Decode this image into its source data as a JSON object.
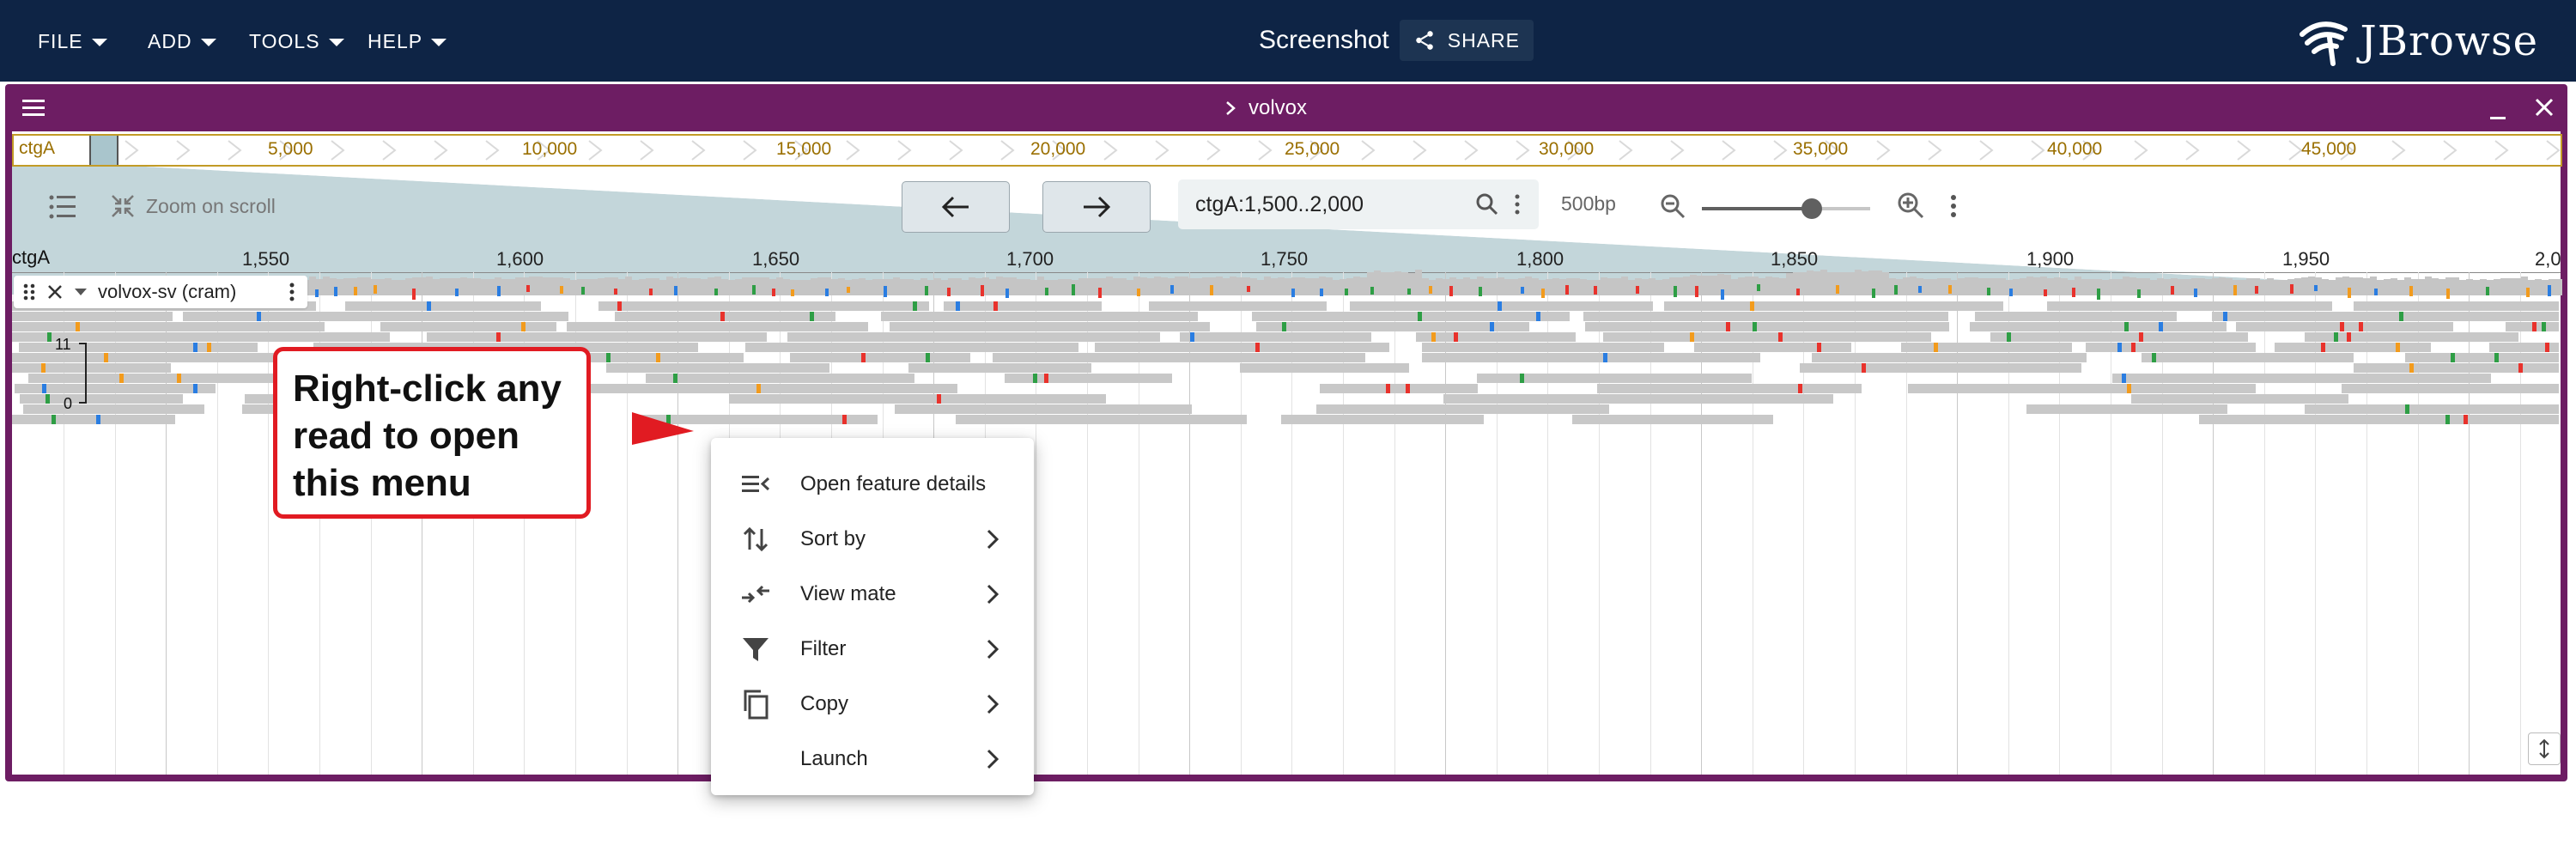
{
  "appbar": {
    "menus": [
      "FILE",
      "ADD",
      "TOOLS",
      "HELP"
    ],
    "session_title": "Screenshot",
    "share_label": "SHARE",
    "logo_text": "JBrowse",
    "background": "#0e2445"
  },
  "view": {
    "assembly_name": "volvox",
    "frame_color": "#6d1d63",
    "overview": {
      "ref_name": "ctgA",
      "ticks": [
        "5,000",
        "10,000",
        "15,000",
        "20,000",
        "25,000",
        "30,000",
        "35,000",
        "40,000",
        "45,000"
      ]
    },
    "toolbar": {
      "zoom_on_scroll_label": "Zoom on scroll",
      "location": "ctgA:1,500..2,000",
      "bp_label": "500bp"
    },
    "ruler": {
      "ref_name": "ctgA",
      "ticks": [
        "1,550",
        "1,600",
        "1,650",
        "1,700",
        "1,750",
        "1,800",
        "1,850",
        "1,900",
        "1,950",
        "2,0"
      ]
    },
    "track": {
      "name": "volvox-sv (cram)",
      "coverage_max": "11",
      "coverage_min": "0"
    }
  },
  "callout": {
    "lines": [
      "Right-click any",
      "read to open",
      "this menu"
    ],
    "color": "#e11b22"
  },
  "context_menu": {
    "items": [
      {
        "label": "Open feature details",
        "icon": "feature-details-icon",
        "has_submenu": false
      },
      {
        "label": "Sort by",
        "icon": "sort-icon",
        "has_submenu": true
      },
      {
        "label": "View mate",
        "icon": "view-mate-icon",
        "has_submenu": true
      },
      {
        "label": "Filter",
        "icon": "filter-icon",
        "has_submenu": true
      },
      {
        "label": "Copy",
        "icon": "copy-icon",
        "has_submenu": true
      },
      {
        "label": "Launch",
        "icon": "",
        "has_submenu": true
      }
    ]
  },
  "colors": {
    "mismatch_a": "#2e9e45",
    "mismatch_c": "#2a7de1",
    "mismatch_g": "#f29b1d",
    "mismatch_t": "#e8322c",
    "read": "#c8c8c8"
  }
}
